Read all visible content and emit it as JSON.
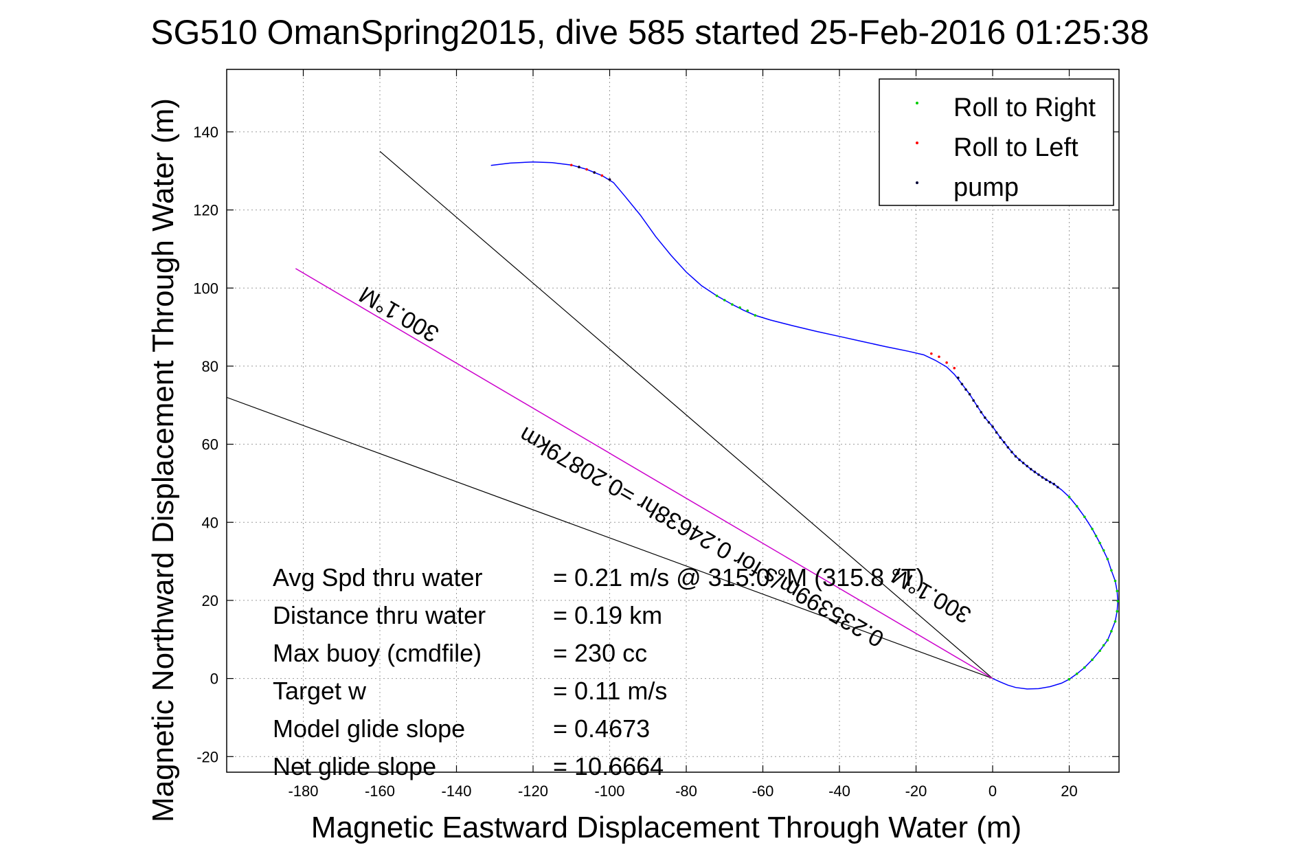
{
  "chart_data": {
    "type": "line",
    "title": "SG510 OmanSpring2015, dive 585 started 25-Feb-2016 01:25:38",
    "xlabel": "Magnetic Eastward Displacement Through Water (m)",
    "ylabel": "Magnetic Northward Displacement Through Water (m)",
    "xlim": [
      -200,
      33
    ],
    "ylim": [
      -24,
      156
    ],
    "xticks": [
      -180,
      -160,
      -140,
      -120,
      -100,
      -80,
      -60,
      -40,
      -20,
      0,
      20
    ],
    "yticks": [
      -20,
      0,
      20,
      40,
      60,
      80,
      100,
      120,
      140
    ],
    "grid": true,
    "legend_position": "top-right",
    "legend": [
      "Roll to Right",
      "Roll to Left",
      "pump"
    ],
    "colors": {
      "track": "#0000ff",
      "roll_right": "#00cc00",
      "roll_left": "#ff0000",
      "pump": "#000033",
      "heading_line": "#cc00cc",
      "bounds": "#000000",
      "grid": "#999999"
    },
    "track": {
      "x": [
        -131,
        -126,
        -120,
        -115,
        -110,
        -106,
        -102,
        -99,
        -96,
        -92,
        -88,
        -84,
        -80,
        -76,
        -72,
        -68,
        -65,
        -62,
        -58,
        -52,
        -46,
        -40,
        -34,
        -28,
        -22,
        -18,
        -15,
        -12,
        -10,
        -8,
        -6,
        -4,
        -2,
        0,
        2,
        4,
        6,
        8,
        10,
        12,
        14,
        16,
        18,
        20,
        22,
        24,
        26,
        28,
        30,
        31,
        32,
        32.5,
        32.7,
        32.5,
        32,
        31,
        30,
        28,
        26,
        24,
        22,
        20,
        18,
        15,
        12,
        9,
        6,
        4,
        2,
        0
      ],
      "y": [
        131.4,
        132,
        132.3,
        132.1,
        131.5,
        130.4,
        128.8,
        127,
        123.5,
        118.7,
        113.2,
        108.4,
        104.1,
        100.6,
        98,
        95.8,
        94.3,
        93,
        91.8,
        90.3,
        88.9,
        87.6,
        86.3,
        85,
        83.8,
        82.9,
        81.5,
        79.8,
        77.9,
        75.4,
        72.8,
        69.7,
        66.8,
        64.5,
        61.7,
        59.2,
        56.9,
        55.2,
        53.6,
        52.2,
        50.9,
        49.8,
        48.3,
        46.5,
        44.1,
        41.4,
        38.3,
        34.7,
        30.6,
        27.7,
        25,
        22.4,
        19.8,
        17.2,
        14.6,
        12.1,
        9.8,
        7.1,
        4.8,
        2.8,
        1.2,
        -0.2,
        -1.2,
        -2.1,
        -2.6,
        -2.7,
        -2.3,
        -1.7,
        -0.9,
        0
      ]
    },
    "roll_right": {
      "x": [
        -72,
        -70,
        -68,
        -66,
        -64,
        -62,
        20,
        22,
        24,
        26,
        27,
        28,
        29,
        30,
        31,
        32,
        32.5,
        32.7,
        32.5,
        32,
        31,
        30,
        29,
        28,
        26,
        24,
        22,
        20
      ],
      "y": [
        98,
        96.9,
        95.8,
        95,
        94.2,
        93,
        46.5,
        44.1,
        41.4,
        38.3,
        36.5,
        34.7,
        32.8,
        30.6,
        27.7,
        25,
        22.4,
        19.8,
        17.2,
        14.6,
        12.1,
        9.8,
        8.5,
        7.1,
        4.8,
        2.8,
        1.2,
        -0.2
      ]
    },
    "roll_left": {
      "x": [
        -110,
        -108,
        -106,
        -104,
        -102,
        -100,
        -16,
        -14,
        -12,
        -10
      ],
      "y": [
        131.5,
        131,
        130.4,
        129.6,
        128.8,
        127.8,
        83.2,
        82.4,
        80.9,
        79.5
      ]
    },
    "pump": {
      "x": [
        -108,
        -104,
        -100,
        -9,
        -8,
        -7,
        -6,
        -5,
        -4,
        -3,
        -2,
        -1,
        0,
        1,
        2,
        3,
        4,
        5,
        6,
        7,
        8,
        9,
        10,
        11,
        12,
        13,
        14,
        15,
        16,
        17
      ],
      "y": [
        131,
        129.6,
        127.8,
        77,
        75.4,
        74,
        72.8,
        71.2,
        69.7,
        68.2,
        66.8,
        65.6,
        64.5,
        63,
        61.7,
        60.5,
        59.2,
        58,
        56.9,
        56,
        55.2,
        54.4,
        53.6,
        52.9,
        52.2,
        51.5,
        50.9,
        50.3,
        49.8,
        49
      ]
    },
    "heading_line": {
      "x": [
        0,
        -182
      ],
      "y": [
        0,
        105
      ]
    },
    "bound_lines": [
      {
        "x": [
          0,
          -160
        ],
        "y": [
          0,
          135
        ]
      },
      {
        "x": [
          0,
          -200
        ],
        "y": [
          0,
          72
        ]
      }
    ],
    "annotations": [
      {
        "text": "300.1°M",
        "x": -154,
        "y": 95,
        "angle": 30
      },
      {
        "text": "0.235399m/s for 0.24638hr =0.20879km",
        "x": -75,
        "y": 38,
        "angle": 30
      },
      {
        "text": "300.1°M",
        "x": -15,
        "y": 23,
        "angle": 30
      }
    ],
    "stats": [
      {
        "label": "Avg Spd thru water",
        "value": "=  0.21 m/s @ 315.0 °M (315.8 °T)"
      },
      {
        "label": "Distance thru water",
        "value": "=  0.19 km"
      },
      {
        "label": "Max buoy (cmdfile)",
        "value": "= 230 cc"
      },
      {
        "label": "Target w",
        "value": "= 0.11 m/s"
      },
      {
        "label": "Model glide slope",
        "value": "= 0.4673"
      },
      {
        "label": "Net glide slope",
        "value": "= 10.6664"
      }
    ]
  }
}
